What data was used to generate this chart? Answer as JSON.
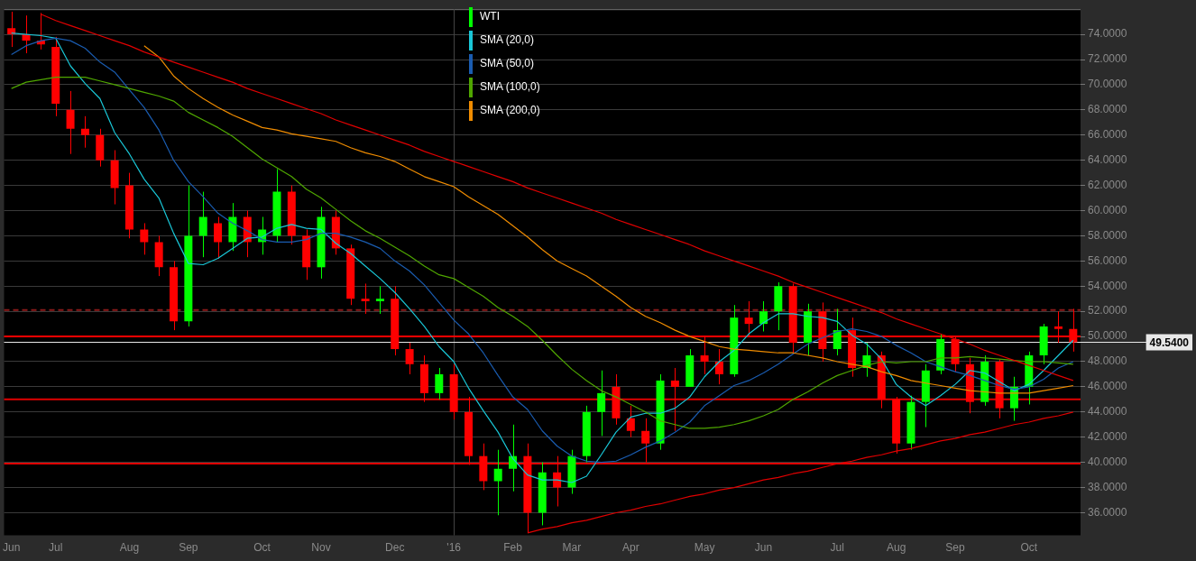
{
  "chart_data": {
    "type": "candlestick",
    "categories": [
      "Jun",
      null,
      null,
      "Jul",
      null,
      null,
      null,
      null,
      "Aug",
      null,
      null,
      null,
      "Sep",
      null,
      null,
      null,
      null,
      "Oct",
      null,
      null,
      null,
      "Nov",
      null,
      null,
      null,
      null,
      "Dec",
      null,
      null,
      null,
      "'16",
      null,
      null,
      null,
      "Feb",
      null,
      null,
      null,
      "Mar",
      null,
      null,
      null,
      "Apr",
      null,
      null,
      null,
      null,
      "May",
      null,
      null,
      null,
      "Jun",
      null,
      null,
      null,
      null,
      "Jul",
      null,
      null,
      null,
      "Aug",
      null,
      null,
      null,
      "Sep",
      null,
      null,
      null,
      null,
      "Oct",
      null,
      null,
      null
    ],
    "series": [
      {
        "name": "WTI",
        "color": "#00ff00",
        "colors": [
          "#ff0000",
          "#ff0000",
          "#ff0000",
          "#ff0000",
          "#ff0000",
          "#ff0000",
          "#ff0000",
          "#ff0000",
          "#ff0000",
          "#ff0000",
          "#ff0000",
          "#ff0000",
          "#00ff00",
          "#00ff00",
          "#ff0000",
          "#00ff00",
          "#ff0000",
          "#00ff00",
          "#00ff00",
          "#ff0000",
          "#ff0000",
          "#00ff00",
          "#ff0000",
          "#ff0000",
          "#ff0000",
          "#00ff00",
          "#ff0000",
          "#ff0000",
          "#ff0000",
          "#00ff00",
          "#ff0000",
          "#ff0000",
          "#ff0000",
          "#00ff00",
          "#00ff00",
          "#ff0000",
          "#00ff00",
          "#ff0000",
          "#00ff00",
          "#00ff00",
          "#00ff00",
          "#ff0000",
          "#ff0000",
          "#ff0000",
          "#00ff00",
          "#ff0000",
          "#00ff00",
          "#ff0000",
          "#ff0000",
          "#00ff00",
          "#ff0000",
          "#00ff00",
          "#00ff00",
          "#ff0000",
          "#00ff00",
          "#ff0000",
          "#00ff00",
          "#ff0000",
          "#00ff00",
          "#ff0000",
          "#ff0000",
          "#00ff00",
          "#00ff00",
          "#00ff00",
          "#ff0000",
          "#ff0000",
          "#00ff00",
          "#ff0000",
          "#00ff00",
          "#00ff00",
          "#00ff00",
          "#ff0000",
          "#ff0000"
        ],
        "ohlc": [
          [
            74.5,
            75.8,
            73.0,
            74.0
          ],
          [
            74.0,
            75.5,
            72.5,
            73.5
          ],
          [
            73.5,
            75.7,
            72.8,
            73.2
          ],
          [
            73.0,
            73.8,
            67.5,
            68.5
          ],
          [
            68.0,
            69.5,
            64.5,
            66.5
          ],
          [
            66.5,
            67.5,
            65.0,
            66.0
          ],
          [
            66.0,
            66.5,
            63.5,
            64.0
          ],
          [
            64.0,
            64.8,
            60.5,
            61.8
          ],
          [
            62.0,
            63.0,
            57.8,
            58.5
          ],
          [
            58.5,
            59.0,
            56.5,
            57.5
          ],
          [
            57.5,
            58.0,
            54.8,
            55.5
          ],
          [
            55.5,
            56.0,
            50.5,
            51.2
          ],
          [
            51.2,
            62.0,
            50.8,
            58.0
          ],
          [
            58.0,
            61.5,
            56.3,
            59.5
          ],
          [
            59.0,
            59.5,
            56.2,
            57.5
          ],
          [
            57.5,
            60.6,
            56.8,
            59.5
          ],
          [
            59.5,
            60.0,
            56.3,
            57.5
          ],
          [
            57.5,
            59.5,
            56.5,
            58.5
          ],
          [
            58.0,
            63.3,
            57.5,
            61.5
          ],
          [
            61.5,
            62.0,
            57.3,
            58.0
          ],
          [
            58.0,
            58.5,
            54.5,
            55.5
          ],
          [
            55.5,
            60.3,
            54.6,
            59.5
          ],
          [
            59.5,
            60.0,
            56.5,
            57.0
          ],
          [
            57.0,
            57.3,
            52.5,
            53.0
          ],
          [
            53.0,
            54.2,
            51.8,
            52.8
          ],
          [
            52.8,
            54.0,
            51.8,
            53.0
          ],
          [
            53.0,
            54.0,
            48.5,
            49.0
          ],
          [
            49.0,
            49.5,
            47.0,
            47.8
          ],
          [
            47.8,
            48.5,
            44.8,
            45.5
          ],
          [
            45.5,
            47.5,
            45.0,
            47.0
          ],
          [
            47.0,
            47.8,
            43.4,
            44.0
          ],
          [
            44.0,
            45.2,
            39.8,
            40.5
          ],
          [
            40.5,
            41.5,
            37.8,
            38.5
          ],
          [
            38.5,
            41.0,
            35.8,
            39.5
          ],
          [
            39.5,
            43.0,
            37.7,
            40.5
          ],
          [
            40.5,
            41.5,
            34.4,
            36.0
          ],
          [
            36.0,
            40.0,
            35.0,
            39.2
          ],
          [
            39.2,
            40.5,
            36.5,
            38.0
          ],
          [
            38.0,
            41.0,
            37.5,
            40.5
          ],
          [
            40.5,
            44.5,
            40.0,
            44.0
          ],
          [
            44.0,
            47.3,
            42.1,
            45.5
          ],
          [
            46.0,
            47.0,
            43.0,
            43.5
          ],
          [
            43.5,
            44.5,
            42.0,
            42.5
          ],
          [
            42.5,
            43.5,
            40.0,
            41.5
          ],
          [
            41.5,
            47.0,
            41.0,
            46.5
          ],
          [
            46.5,
            47.5,
            42.5,
            46.0
          ],
          [
            46.0,
            49.0,
            46.0,
            48.5
          ],
          [
            48.5,
            50.0,
            47.0,
            48.0
          ],
          [
            48.0,
            49.0,
            46.2,
            47.0
          ],
          [
            47.0,
            52.5,
            46.8,
            51.5
          ],
          [
            51.5,
            52.8,
            50.0,
            51.0
          ],
          [
            51.0,
            52.8,
            50.4,
            52.0
          ],
          [
            52.0,
            54.3,
            50.5,
            54.0
          ],
          [
            54.0,
            54.2,
            48.7,
            49.5
          ],
          [
            49.5,
            52.6,
            48.5,
            52.0
          ],
          [
            52.0,
            52.7,
            48.0,
            49.0
          ],
          [
            49.0,
            52.2,
            48.5,
            50.5
          ],
          [
            50.5,
            51.5,
            46.8,
            47.5
          ],
          [
            47.5,
            49.5,
            46.8,
            48.5
          ],
          [
            48.5,
            48.8,
            44.3,
            45.0
          ],
          [
            45.0,
            45.2,
            40.7,
            41.5
          ],
          [
            41.5,
            45.3,
            41.0,
            44.8
          ],
          [
            44.8,
            47.8,
            42.8,
            47.3
          ],
          [
            47.3,
            50.2,
            47.0,
            49.8
          ],
          [
            49.8,
            50.0,
            47.2,
            47.8
          ],
          [
            47.8,
            48.3,
            43.9,
            44.8
          ],
          [
            44.8,
            48.5,
            44.5,
            48.0
          ],
          [
            48.0,
            48.2,
            43.5,
            44.3
          ],
          [
            44.3,
            46.8,
            43.3,
            46.0
          ],
          [
            46.0,
            48.8,
            44.6,
            48.5
          ],
          [
            48.5,
            51.0,
            47.8,
            50.8
          ],
          [
            50.8,
            52.0,
            49.5,
            50.6
          ],
          [
            50.6,
            52.2,
            48.8,
            49.54
          ]
        ]
      },
      {
        "name": "SMA (20,0)",
        "type": "line",
        "color": "#19c6d6",
        "values": [
          74.1,
          74.0,
          73.9,
          73.7,
          71.5,
          70.1,
          68.9,
          66.2,
          64.5,
          62.5,
          61.0,
          58.2,
          55.8,
          55.7,
          56.2,
          57.0,
          57.8,
          57.9,
          58.6,
          58.9,
          58.6,
          58.5,
          57.4,
          56.6,
          55.6,
          54.6,
          53.5,
          52.2,
          50.8,
          49.2,
          48.0,
          45.9,
          44.1,
          42.4,
          40.3,
          39.0,
          38.6,
          38.6,
          38.4,
          38.9,
          40.6,
          42.4,
          43.6,
          43.9,
          43.9,
          44.3,
          45.2,
          46.8,
          48.0,
          48.9,
          50.2,
          51.1,
          51.8,
          51.8,
          51.6,
          51.5,
          51.2,
          50.1,
          49.4,
          48.2,
          46.2,
          45.2,
          44.5,
          45.3,
          46.2,
          47.3,
          47.1,
          46.4,
          45.7,
          46.2,
          47.3,
          48.5,
          49.7
        ]
      },
      {
        "name": "SMA (50,0)",
        "type": "line",
        "color": "#1a5cb0",
        "values": [
          72.4,
          73.1,
          73.5,
          73.7,
          73.5,
          72.9,
          71.8,
          71.0,
          69.6,
          68.2,
          66.4,
          64.0,
          62.3,
          61.1,
          59.8,
          59.0,
          58.4,
          57.7,
          57.5,
          57.5,
          57.7,
          58.2,
          58.2,
          57.9,
          57.5,
          57.0,
          56.0,
          55.2,
          54.1,
          52.7,
          51.3,
          50.2,
          48.7,
          46.9,
          45.2,
          44.2,
          42.5,
          41.3,
          40.5,
          40.1,
          40.0,
          40.1,
          40.6,
          41.2,
          41.7,
          42.4,
          43.2,
          44.5,
          45.3,
          46.1,
          46.5,
          47.1,
          47.8,
          48.6,
          49.4,
          49.9,
          50.4,
          50.6,
          50.4,
          50.0,
          49.3,
          48.7,
          48.0,
          47.6,
          47.2,
          46.9,
          46.5,
          46.1,
          45.8,
          46.0,
          46.6,
          47.5,
          48.0
        ]
      },
      {
        "name": "SMA (100,0)",
        "type": "line",
        "color": "#4fa600",
        "values": [
          69.7,
          70.2,
          70.4,
          70.6,
          70.6,
          70.6,
          70.3,
          70.0,
          69.7,
          69.4,
          69.1,
          68.7,
          67.8,
          67.2,
          66.6,
          65.9,
          65.0,
          64.1,
          63.4,
          62.7,
          61.7,
          61.0,
          60.1,
          59.2,
          58.4,
          57.8,
          57.1,
          56.4,
          55.6,
          54.9,
          54.6,
          53.9,
          53.2,
          52.3,
          51.6,
          50.8,
          49.7,
          48.5,
          47.4,
          46.5,
          45.7,
          45.2,
          44.6,
          44.0,
          43.3,
          43.0,
          42.7,
          42.7,
          42.8,
          43.0,
          43.3,
          43.7,
          44.2,
          45.0,
          45.6,
          46.3,
          46.9,
          47.3,
          47.7,
          48.0,
          47.9,
          48.0,
          48.0,
          48.3,
          48.3,
          48.4,
          48.3,
          48.2,
          48.1,
          48.0,
          48.0,
          47.9,
          47.8
        ]
      },
      {
        "name": "SMA (200,0)",
        "type": "line",
        "color": "#f08c00",
        "values": [
          null,
          null,
          null,
          null,
          null,
          null,
          null,
          null,
          null,
          73.1,
          72.2,
          70.7,
          69.7,
          68.9,
          68.2,
          67.6,
          67.1,
          66.6,
          66.4,
          66.1,
          65.9,
          65.7,
          65.5,
          65.0,
          64.6,
          64.3,
          63.9,
          63.3,
          62.7,
          62.3,
          61.9,
          61.1,
          60.4,
          59.7,
          58.8,
          57.9,
          56.9,
          56.0,
          55.4,
          54.8,
          54.0,
          53.2,
          52.3,
          51.6,
          51.1,
          50.5,
          50.0,
          49.6,
          49.2,
          49.0,
          48.9,
          48.8,
          48.7,
          48.7,
          48.5,
          48.3,
          48.0,
          47.8,
          47.6,
          47.2,
          46.9,
          46.5,
          46.3,
          46.1,
          45.9,
          45.7,
          45.6,
          45.5,
          45.5,
          45.5,
          45.7,
          45.9,
          46.1
        ]
      },
      {
        "type": "line",
        "color": "#e00000",
        "values": [
          null,
          null,
          75.6,
          75.1,
          74.7,
          74.3,
          73.9,
          73.5,
          73.1,
          72.6,
          72.2,
          71.8,
          71.4,
          71.0,
          70.6,
          70.2,
          69.7,
          69.3,
          68.9,
          68.5,
          68.1,
          67.7,
          67.2,
          66.8,
          66.4,
          66.0,
          65.6,
          65.2,
          64.7,
          64.3,
          63.9,
          63.5,
          63.1,
          62.7,
          62.3,
          61.8,
          61.4,
          61.0,
          60.6,
          60.2,
          59.8,
          59.3,
          58.9,
          58.5,
          58.1,
          57.7,
          57.3,
          56.8,
          56.4,
          56.0,
          55.6,
          55.2,
          54.8,
          54.3,
          53.9,
          53.5,
          53.1,
          52.7,
          52.3,
          51.9,
          51.4,
          51.0,
          50.6,
          50.2,
          49.8,
          49.4,
          48.9,
          48.5,
          48.1,
          47.7,
          47.3,
          46.9,
          46.5
        ]
      },
      {
        "type": "line",
        "color": "#e00000",
        "values": [
          null,
          null,
          null,
          null,
          null,
          null,
          null,
          null,
          null,
          null,
          null,
          null,
          null,
          null,
          null,
          null,
          null,
          null,
          null,
          null,
          null,
          null,
          null,
          null,
          null,
          null,
          null,
          null,
          null,
          null,
          null,
          null,
          null,
          null,
          null,
          34.4,
          34.7,
          34.9,
          35.2,
          35.4,
          35.7,
          36.0,
          36.2,
          36.5,
          36.7,
          37.0,
          37.3,
          37.5,
          37.8,
          38.0,
          38.3,
          38.6,
          38.8,
          39.1,
          39.3,
          39.6,
          39.9,
          40.1,
          40.4,
          40.6,
          40.9,
          41.1,
          41.4,
          41.7,
          41.9,
          42.2,
          42.4,
          42.7,
          43.0,
          43.2,
          43.5,
          43.7,
          44.0
        ]
      }
    ],
    "ylim": [
      34.2,
      76
    ],
    "yticks": [
      {
        "value": 36,
        "label": "36.0000"
      },
      {
        "value": 38,
        "label": "38.0000"
      },
      {
        "value": 40,
        "label": "40.0000"
      },
      {
        "value": 42,
        "label": "42.0000"
      },
      {
        "value": 44,
        "label": "44.0000"
      },
      {
        "value": 46,
        "label": "46.0000"
      },
      {
        "value": 48,
        "label": "48.0000"
      },
      {
        "value": 50,
        "label": "50.0000"
      },
      {
        "value": 52,
        "label": "52.0000"
      },
      {
        "value": 54,
        "label": "54.0000"
      },
      {
        "value": 56,
        "label": "56.0000"
      },
      {
        "value": 58,
        "label": "58.0000"
      },
      {
        "value": 60,
        "label": "60.0000"
      },
      {
        "value": 62,
        "label": "62.0000"
      },
      {
        "value": 64,
        "label": "64.0000"
      },
      {
        "value": 66,
        "label": "66.0000"
      },
      {
        "value": 68,
        "label": "68.0000"
      },
      {
        "value": 70,
        "label": "70.0000"
      },
      {
        "value": 72,
        "label": "72.0000"
      },
      {
        "value": 74,
        "label": "74.0000"
      }
    ],
    "grid": "y",
    "legend": "top",
    "ref_lines": [
      {
        "axis": "x",
        "value": "'16",
        "color": "#444444"
      },
      {
        "axis": "y",
        "value": 52.1,
        "color": "#8b1a1a",
        "line_style": "dashed"
      },
      {
        "axis": "y",
        "value": 50.0,
        "color": "#ff0000"
      },
      {
        "axis": "y",
        "value": 45.0,
        "color": "#e00000"
      },
      {
        "axis": "y",
        "value": 39.9,
        "color": "#e00000"
      },
      {
        "axis": "y",
        "value": 49.54,
        "color": "#e8e8e8",
        "label": "49.5400"
      }
    ]
  }
}
